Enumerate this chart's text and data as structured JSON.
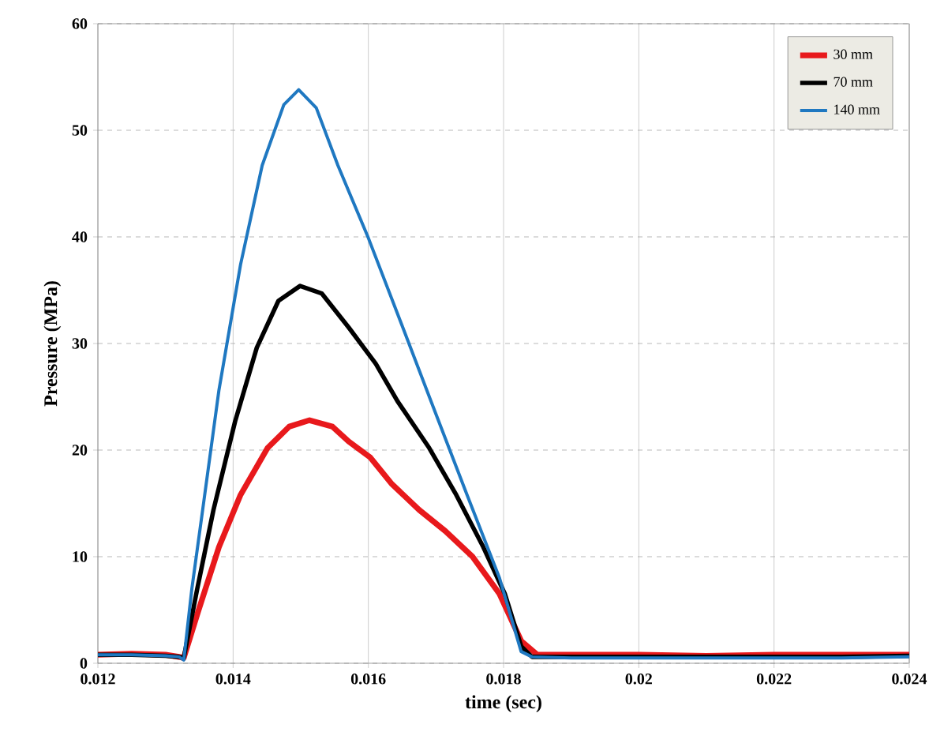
{
  "chart_data": {
    "type": "line",
    "xlabel": "time (sec)",
    "ylabel": "Pressure (MPa)",
    "xlim": [
      0.012,
      0.024
    ],
    "ylim": [
      0,
      60
    ],
    "xticks": [
      {
        "value": 0.012,
        "label": "0.012"
      },
      {
        "value": 0.014,
        "label": "0.014"
      },
      {
        "value": 0.016,
        "label": "0.016"
      },
      {
        "value": 0.018,
        "label": "0.018"
      },
      {
        "value": 0.02,
        "label": "0.02"
      },
      {
        "value": 0.022,
        "label": "0.022"
      },
      {
        "value": 0.024,
        "label": "0.024"
      }
    ],
    "yticks": [
      0,
      10,
      20,
      30,
      40,
      50,
      60
    ],
    "grid": true,
    "legend": "top right",
    "marker": "none",
    "line_style": "solid",
    "series": [
      {
        "name": "30 mm",
        "color": "#e8191c",
        "x": [
          0.012,
          0.0125,
          0.013,
          0.0132,
          0.01327,
          0.01347,
          0.01379,
          0.01411,
          0.01451,
          0.01483,
          0.01513,
          0.01547,
          0.01571,
          0.01603,
          0.01635,
          0.01675,
          0.01714,
          0.01754,
          0.01794,
          0.01826,
          0.0185,
          0.019,
          0.02,
          0.021,
          0.022,
          0.023,
          0.024
        ],
        "values": [
          0.8,
          0.9,
          0.8,
          0.6,
          0.5,
          4.6,
          10.9,
          15.8,
          20.2,
          22.2,
          22.8,
          22.2,
          20.8,
          19.3,
          16.8,
          14.4,
          12.4,
          10,
          6.5,
          2.1,
          0.8,
          0.8,
          0.8,
          0.7,
          0.8,
          0.8,
          0.8
        ]
      },
      {
        "name": "70 mm",
        "color": "#000000",
        "x": [
          0.012,
          0.0125,
          0.013,
          0.0132,
          0.01327,
          0.01347,
          0.01371,
          0.01403,
          0.01435,
          0.01467,
          0.01499,
          0.01531,
          0.01571,
          0.01611,
          0.01643,
          0.0169,
          0.0173,
          0.0177,
          0.01802,
          0.01826,
          0.01842,
          0.019,
          0.02,
          0.021,
          0.022,
          0.023,
          0.024
        ],
        "values": [
          0.8,
          0.8,
          0.7,
          0.6,
          0.5,
          7,
          14.4,
          22.7,
          29.6,
          34,
          35.4,
          34.7,
          31.5,
          28.1,
          24.6,
          20.2,
          15.8,
          10.9,
          6.5,
          1.6,
          0.6,
          0.6,
          0.6,
          0.6,
          0.6,
          0.6,
          0.7
        ]
      },
      {
        "name": "140 mm",
        "color": "#1f78c1",
        "x": [
          0.012,
          0.0125,
          0.013,
          0.0132,
          0.01327,
          0.01339,
          0.01355,
          0.01379,
          0.01411,
          0.01443,
          0.01475,
          0.01497,
          0.01523,
          0.01555,
          0.016,
          0.01651,
          0.01698,
          0.01746,
          0.01794,
          0.01826,
          0.01842,
          0.019,
          0.02,
          0.021,
          0.022,
          0.023,
          0.024
        ],
        "values": [
          0.8,
          0.8,
          0.7,
          0.6,
          0.3,
          7,
          14.4,
          25.6,
          37.4,
          46.7,
          52.4,
          53.8,
          52.1,
          46.7,
          39.9,
          31.5,
          23.7,
          15.8,
          8,
          1.1,
          0.6,
          0.5,
          0.5,
          0.5,
          0.5,
          0.5,
          0.6
        ]
      }
    ]
  }
}
